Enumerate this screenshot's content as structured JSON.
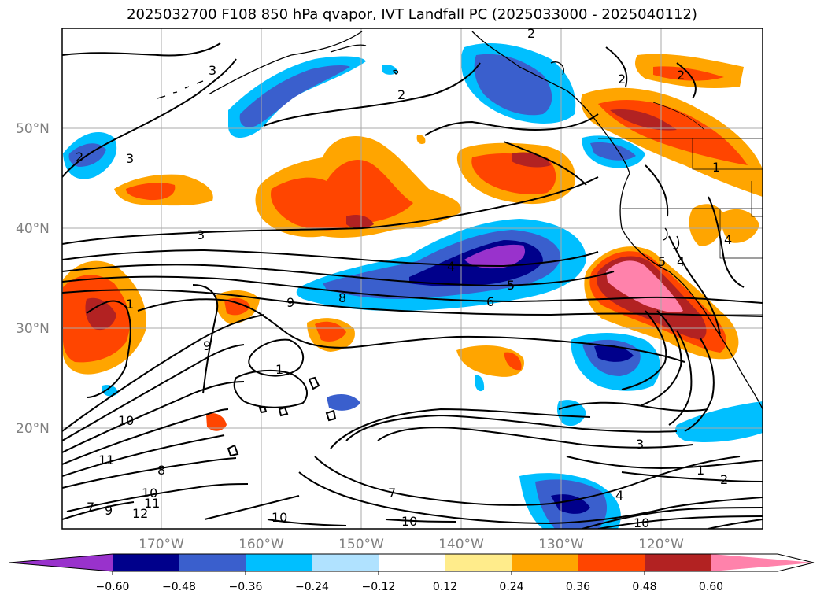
{
  "title": "2025032700 F108 850 hPa qvapor, IVT Landfall PC (2025033000 - 2025040112)",
  "lat_labels": [
    "50°N",
    "40°N",
    "30°N",
    "20°N"
  ],
  "lon_labels": [
    "170°W",
    "160°W",
    "150°W",
    "140°W",
    "130°W",
    "120°W"
  ],
  "colorbar": {
    "colors": [
      "#9932cc",
      "#00008b",
      "#3a5fcd",
      "#00bfff",
      "#b0e2ff",
      "#ffffff",
      "#ffec8b",
      "#ffa500",
      "#ff4500",
      "#b22222",
      "#ff82ab"
    ],
    "ticks": [
      "−0.60",
      "−0.48",
      "−0.36",
      "−0.24",
      "−0.12",
      "0.12",
      "0.24",
      "0.36",
      "0.48",
      "0.60"
    ]
  },
  "contour_labels": [
    "2",
    "3",
    "2",
    "3",
    "2",
    "2",
    "3",
    "4",
    "5",
    "6",
    "8",
    "9",
    "9",
    "1",
    "10",
    "11",
    "8",
    "10",
    "11",
    "12",
    "7",
    "9",
    "7",
    "10",
    "10",
    "3",
    "4",
    "1",
    "2",
    "10",
    "1",
    "4",
    "4",
    "5",
    "1",
    "2"
  ]
}
